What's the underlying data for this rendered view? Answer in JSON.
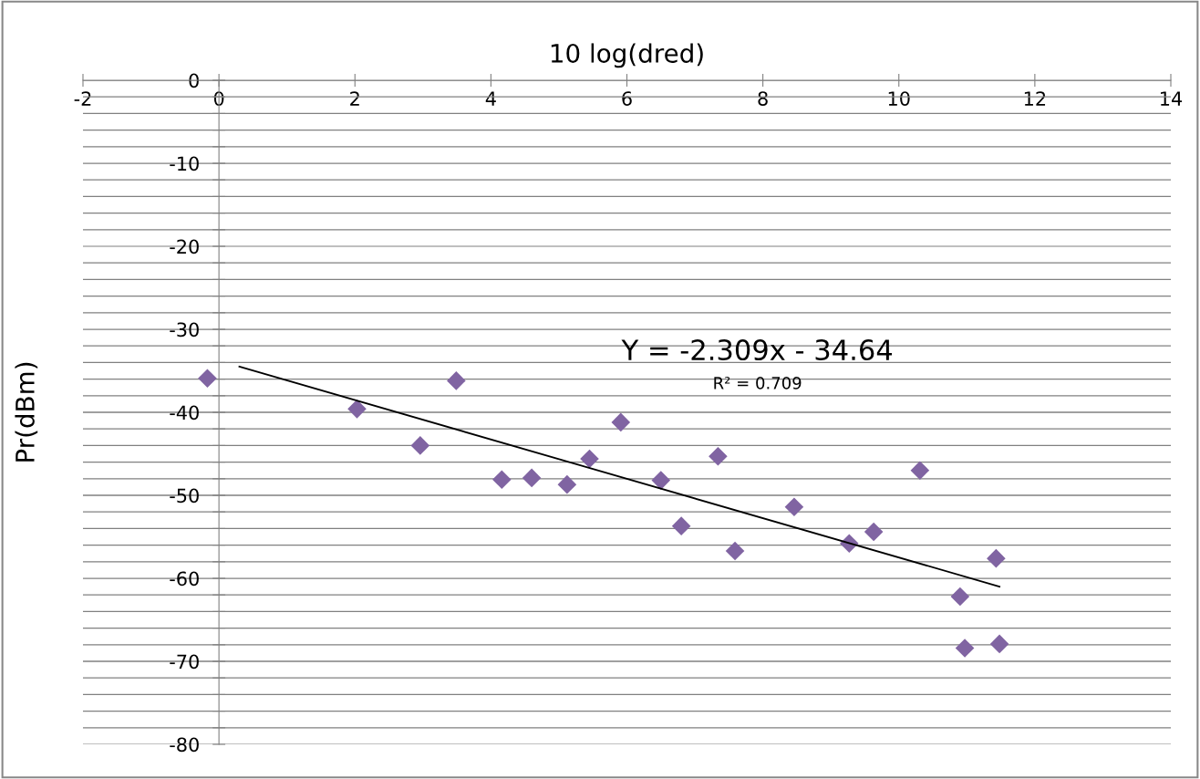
{
  "chart_data": {
    "type": "scatter",
    "title": "10 log(dred)",
    "ylabel": "Pr(dBm)",
    "xlim": [
      -2,
      14
    ],
    "xticks": [
      -2,
      0,
      2,
      4,
      6,
      8,
      10,
      12,
      14
    ],
    "ylim": [
      -80,
      0
    ],
    "yticks": [
      -80,
      {
        "value": -78,
        "label": null
      },
      {
        "value": -76,
        "label": null
      },
      {
        "value": -74,
        "label": null
      },
      {
        "value": -72,
        "label": null
      },
      -70,
      {
        "value": -68,
        "label": null
      },
      {
        "value": -66,
        "label": null
      },
      {
        "value": -64,
        "label": null
      },
      {
        "value": -62,
        "label": null
      },
      -60,
      {
        "value": -58,
        "label": null
      },
      {
        "value": -56,
        "label": null
      },
      {
        "value": -54,
        "label": null
      },
      {
        "value": -52,
        "label": null
      },
      -50,
      {
        "value": -48,
        "label": null
      },
      {
        "value": -46,
        "label": null
      },
      {
        "value": -44,
        "label": null
      },
      {
        "value": -42,
        "label": null
      },
      -40,
      {
        "value": -38,
        "label": null
      },
      {
        "value": -36,
        "label": null
      },
      {
        "value": -34,
        "label": null
      },
      {
        "value": -32,
        "label": null
      },
      -30,
      {
        "value": -28,
        "label": null
      },
      {
        "value": -26,
        "label": null
      },
      {
        "value": -24,
        "label": null
      },
      {
        "value": -22,
        "label": null
      },
      -20,
      {
        "value": -18,
        "label": null
      },
      {
        "value": -16,
        "label": null
      },
      {
        "value": -14,
        "label": null
      },
      {
        "value": -12,
        "label": null
      },
      -10,
      {
        "value": -8,
        "label": null
      },
      {
        "value": -6,
        "label": null
      },
      {
        "value": -4,
        "label": null
      },
      {
        "value": -2,
        "label": null
      },
      0
    ],
    "grid": "y",
    "marker": "diamond",
    "series": [
      {
        "color": "#8064a2",
        "x": [
          -0.17,
          2.03,
          2.96,
          3.49,
          4.16,
          4.6,
          5.12,
          5.45,
          5.91,
          6.5,
          6.8,
          7.34,
          7.59,
          8.46,
          9.27,
          9.63,
          10.31,
          10.9,
          10.97,
          11.43,
          11.48
        ],
        "values": [
          -35.9,
          -39.6,
          -44.0,
          -36.2,
          -48.1,
          -47.9,
          -48.7,
          -45.6,
          -41.2,
          -48.2,
          -53.7,
          -45.3,
          -56.7,
          -51.4,
          -55.8,
          -54.4,
          -47.0,
          -62.2,
          -68.4,
          -57.6,
          -67.9
        ]
      },
      {
        "type": "line",
        "color": "#000000",
        "marker": "none",
        "x": [
          0.3,
          11.48
        ],
        "values": [
          -34.5,
          -61.0
        ]
      }
    ],
    "annotations": [
      "Y = -2.309x - 34.64",
      "R² = 0.709"
    ]
  }
}
